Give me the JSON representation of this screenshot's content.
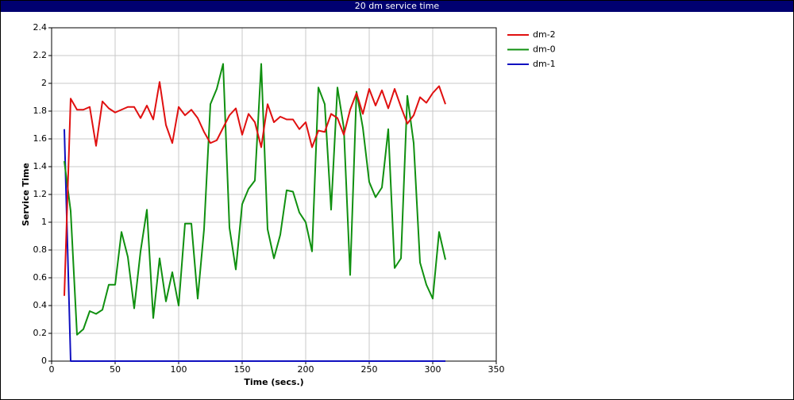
{
  "chart_data": {
    "type": "line",
    "title": "20 dm service time",
    "x_label": "Time (secs.)",
    "y_label": "Service Time",
    "x": [
      10,
      15,
      20,
      25,
      30,
      35,
      40,
      45,
      50,
      55,
      60,
      65,
      70,
      75,
      80,
      85,
      90,
      95,
      100,
      105,
      110,
      115,
      120,
      125,
      130,
      135,
      140,
      145,
      150,
      155,
      160,
      165,
      170,
      175,
      180,
      185,
      190,
      195,
      200,
      205,
      210,
      215,
      220,
      225,
      230,
      235,
      240,
      245,
      250,
      255,
      260,
      265,
      270,
      275,
      280,
      285,
      290,
      295,
      300,
      305,
      310
    ],
    "series": [
      {
        "name": "dm-2",
        "color": "#e01010",
        "values": [
          0.47,
          1.89,
          1.81,
          1.81,
          1.83,
          1.55,
          1.87,
          1.82,
          1.79,
          1.81,
          1.83,
          1.83,
          1.75,
          1.84,
          1.74,
          2.01,
          1.7,
          1.57,
          1.83,
          1.77,
          1.81,
          1.75,
          1.65,
          1.57,
          1.59,
          1.68,
          1.77,
          1.82,
          1.63,
          1.78,
          1.72,
          1.54,
          1.85,
          1.72,
          1.76,
          1.74,
          1.74,
          1.67,
          1.72,
          1.54,
          1.66,
          1.65,
          1.78,
          1.75,
          1.63,
          1.81,
          1.93,
          1.78,
          1.96,
          1.84,
          1.95,
          1.82,
          1.96,
          1.83,
          1.71,
          1.77,
          1.9,
          1.86,
          1.93,
          1.98,
          1.85
        ]
      },
      {
        "name": "dm-0",
        "color": "#109010",
        "values": [
          1.44,
          1.08,
          0.19,
          0.23,
          0.36,
          0.34,
          0.37,
          0.55,
          0.55,
          0.93,
          0.75,
          0.38,
          0.79,
          1.09,
          0.31,
          0.74,
          0.43,
          0.64,
          0.4,
          0.99,
          0.99,
          0.45,
          0.95,
          1.85,
          1.96,
          2.14,
          0.96,
          0.66,
          1.13,
          1.24,
          1.3,
          2.14,
          0.95,
          0.74,
          0.91,
          1.23,
          1.22,
          1.07,
          1.0,
          0.79,
          1.97,
          1.85,
          1.09,
          1.97,
          1.68,
          0.62,
          1.94,
          1.68,
          1.29,
          1.18,
          1.25,
          1.67,
          0.67,
          0.74,
          1.91,
          1.57,
          0.71,
          0.55,
          0.45,
          0.93,
          0.73
        ]
      },
      {
        "name": "dm-1",
        "color": "#1010c0",
        "values": [
          1.67,
          0,
          0,
          0,
          0,
          0,
          0,
          0,
          0,
          0,
          0,
          0,
          0,
          0,
          0,
          0,
          0,
          0,
          0,
          0,
          0,
          0,
          0,
          0,
          0,
          0,
          0,
          0,
          0,
          0,
          0,
          0,
          0,
          0,
          0,
          0,
          0,
          0,
          0,
          0,
          0,
          0,
          0,
          0,
          0,
          0,
          0,
          0,
          0,
          0,
          0,
          0,
          0,
          0,
          0,
          0,
          0,
          0,
          0,
          0,
          0
        ]
      }
    ],
    "xlim": [
      0,
      350
    ],
    "xticks": [
      0,
      50,
      100,
      150,
      200,
      250,
      300,
      350
    ],
    "ylim": [
      0,
      2.4
    ],
    "yticks": [
      0,
      0.2,
      0.4,
      0.6,
      0.8,
      1,
      1.2,
      1.4,
      1.6,
      1.8,
      2,
      2.2,
      2.4
    ],
    "grid": true,
    "legend": "right"
  }
}
